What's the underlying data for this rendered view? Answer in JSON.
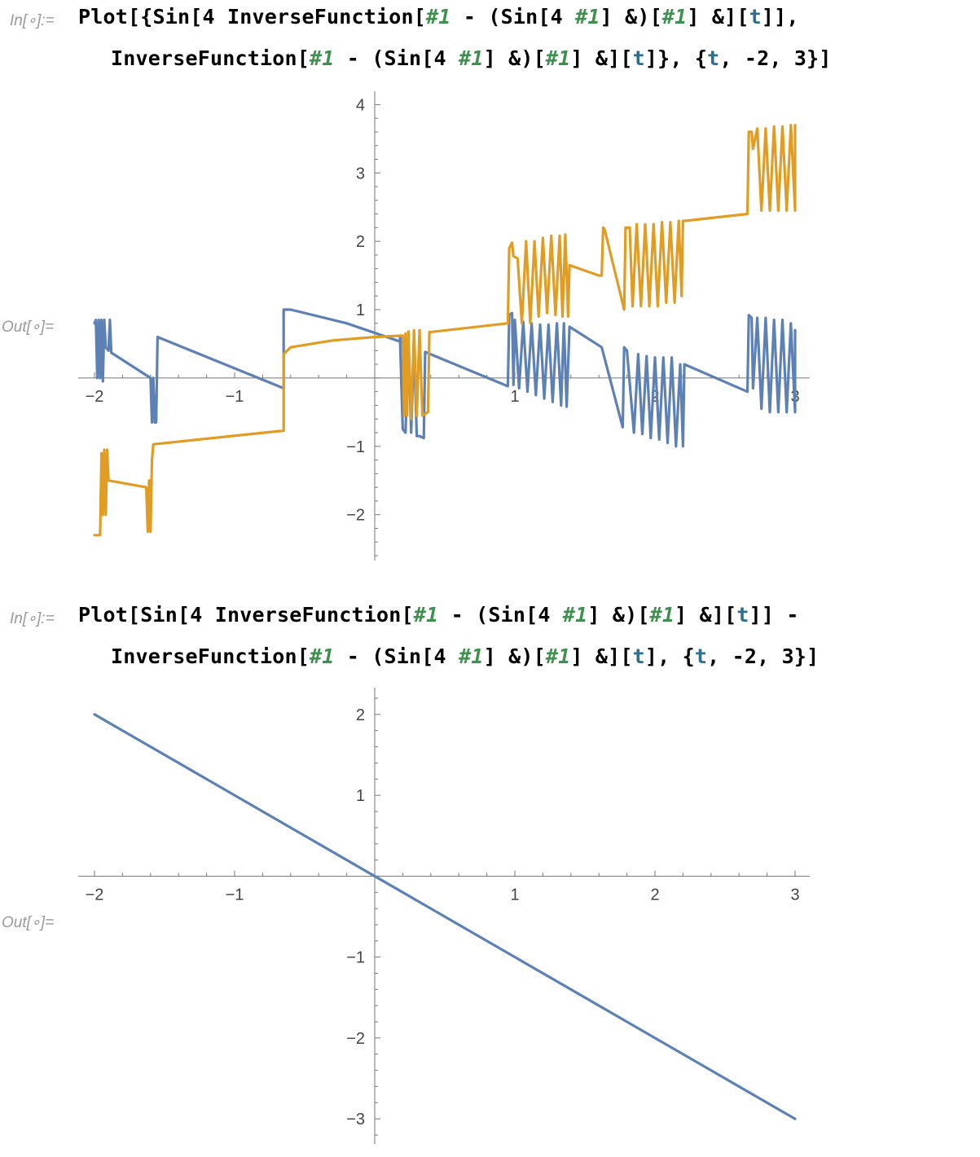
{
  "cells": [
    {
      "in_label": "In[∘]:=",
      "out_label": "Out[∘]=",
      "code_lines": [
        [
          [
            "t",
            "Plot[{Sin[4 InverseFunction["
          ],
          [
            "s",
            "#1"
          ],
          [
            "t",
            " - (Sin[4 "
          ],
          [
            "s",
            "#1"
          ],
          [
            "t",
            "] &)["
          ],
          [
            "s",
            "#1"
          ],
          [
            "t",
            "] &]["
          ],
          [
            "v",
            "t"
          ],
          [
            "t",
            "]],"
          ]
        ],
        [
          [
            "t",
            "InverseFunction["
          ],
          [
            "s",
            "#1"
          ],
          [
            "t",
            " - (Sin[4 "
          ],
          [
            "s",
            "#1"
          ],
          [
            "t",
            "] &)["
          ],
          [
            "s",
            "#1"
          ],
          [
            "t",
            "] &]["
          ],
          [
            "v",
            "t"
          ],
          [
            "t",
            "]}, {"
          ],
          [
            "v",
            "t"
          ],
          [
            "t",
            ", -2, 3}]"
          ]
        ]
      ]
    },
    {
      "in_label": "In[∘]:=",
      "out_label": "Out[∘]=",
      "code_lines": [
        [
          [
            "t",
            "Plot[Sin[4 InverseFunction["
          ],
          [
            "s",
            "#1"
          ],
          [
            "t",
            " - (Sin[4 "
          ],
          [
            "s",
            "#1"
          ],
          [
            "t",
            "] &)["
          ],
          [
            "s",
            "#1"
          ],
          [
            "t",
            "] &]["
          ],
          [
            "v",
            "t"
          ],
          [
            "t",
            "]] -"
          ]
        ],
        [
          [
            "t",
            "InverseFunction["
          ],
          [
            "s",
            "#1"
          ],
          [
            "t",
            " - (Sin[4 "
          ],
          [
            "s",
            "#1"
          ],
          [
            "t",
            "] &)["
          ],
          [
            "s",
            "#1"
          ],
          [
            "t",
            "] &]["
          ],
          [
            "v",
            "t"
          ],
          [
            "t",
            "], {"
          ],
          [
            "v",
            "t"
          ],
          [
            "t",
            ", -2, 3}]"
          ]
        ]
      ]
    }
  ],
  "chart_data": [
    {
      "type": "line",
      "title": "",
      "xlabel": "",
      "ylabel": "",
      "xlim": [
        -2,
        3
      ],
      "ylim": [
        -2.6,
        4.1
      ],
      "xticks": [
        -2,
        -1,
        1,
        2,
        3
      ],
      "xtick_labels": [
        "−2",
        "−1",
        "1",
        "2",
        "3"
      ],
      "yticks": [
        -2,
        -1,
        1,
        2,
        3,
        4
      ],
      "ytick_labels": [
        "−2",
        "−1",
        "1",
        "2",
        "3",
        "4"
      ],
      "colors": [
        "#5e81b5",
        "#e19c24"
      ],
      "series": [
        {
          "points": [
            [
              -2.0,
              0.8
            ],
            [
              -1.99,
              0.85
            ],
            [
              -1.98,
              0.0
            ],
            [
              -1.97,
              0.85
            ],
            [
              -1.96,
              0.0
            ],
            [
              -1.95,
              0.85
            ],
            [
              -1.94,
              -0.05
            ],
            [
              -1.93,
              0.85
            ],
            [
              -1.92,
              0.45
            ],
            [
              -1.9,
              0.4
            ],
            [
              -1.89,
              0.85
            ],
            [
              -1.88,
              0.37
            ],
            [
              -1.6,
              0.0
            ],
            [
              -1.59,
              -0.65
            ],
            [
              -1.58,
              0.0
            ],
            [
              -1.57,
              -0.65
            ],
            [
              -1.56,
              -0.65
            ],
            [
              -1.55,
              0.6
            ],
            [
              -0.65,
              -0.15
            ],
            [
              -0.65,
              1.0
            ],
            [
              -0.6,
              1.0
            ],
            [
              -0.2,
              0.8
            ],
            [
              0.2,
              0.52
            ],
            [
              0.18,
              0.6
            ],
            [
              0.2,
              -0.75
            ],
            [
              0.22,
              -0.8
            ],
            [
              0.24,
              0.55
            ],
            [
              0.26,
              -0.8
            ],
            [
              0.28,
              0.5
            ],
            [
              0.3,
              -0.85
            ],
            [
              0.32,
              -0.85
            ],
            [
              0.35,
              -0.88
            ],
            [
              0.36,
              0.38
            ],
            [
              0.95,
              -0.12
            ],
            [
              0.96,
              0.92
            ],
            [
              0.98,
              0.95
            ],
            [
              0.99,
              -0.1
            ],
            [
              1.0,
              0.85
            ],
            [
              1.03,
              -0.15
            ],
            [
              1.06,
              0.82
            ],
            [
              1.09,
              -0.2
            ],
            [
              1.12,
              0.8
            ],
            [
              1.15,
              -0.25
            ],
            [
              1.18,
              0.78
            ],
            [
              1.21,
              -0.3
            ],
            [
              1.24,
              0.78
            ],
            [
              1.27,
              -0.35
            ],
            [
              1.3,
              0.8
            ],
            [
              1.33,
              -0.4
            ],
            [
              1.35,
              0.8
            ],
            [
              1.37,
              -0.42
            ],
            [
              1.39,
              0.75
            ],
            [
              1.62,
              0.45
            ],
            [
              1.77,
              -0.72
            ],
            [
              1.78,
              0.45
            ],
            [
              1.8,
              0.4
            ],
            [
              1.85,
              -0.8
            ],
            [
              1.88,
              0.35
            ],
            [
              1.91,
              -0.82
            ],
            [
              1.94,
              0.32
            ],
            [
              1.97,
              -0.88
            ],
            [
              2.0,
              0.3
            ],
            [
              2.03,
              -0.9
            ],
            [
              2.06,
              0.3
            ],
            [
              2.09,
              -0.95
            ],
            [
              2.12,
              0.3
            ],
            [
              2.15,
              -1.0
            ],
            [
              2.18,
              0.2
            ],
            [
              2.2,
              -1.0
            ],
            [
              2.21,
              0.2
            ],
            [
              2.66,
              -0.2
            ],
            [
              2.67,
              0.92
            ],
            [
              2.69,
              0.88
            ],
            [
              2.7,
              -0.15
            ],
            [
              2.73,
              0.88
            ],
            [
              2.76,
              -0.45
            ],
            [
              2.79,
              0.88
            ],
            [
              2.82,
              -0.5
            ],
            [
              2.85,
              0.85
            ],
            [
              2.88,
              -0.5
            ],
            [
              2.91,
              0.85
            ],
            [
              2.94,
              -0.5
            ],
            [
              2.97,
              0.8
            ],
            [
              3.0,
              -0.5
            ],
            [
              3.0,
              0.7
            ]
          ]
        },
        {
          "points": [
            [
              -2.0,
              -2.3
            ],
            [
              -1.96,
              -2.3
            ],
            [
              -1.95,
              -1.1
            ],
            [
              -1.94,
              -2.0
            ],
            [
              -1.93,
              -1.05
            ],
            [
              -1.92,
              -2.0
            ],
            [
              -1.91,
              -1.05
            ],
            [
              -1.9,
              -1.5
            ],
            [
              -1.63,
              -1.6
            ],
            [
              -1.62,
              -2.25
            ],
            [
              -1.61,
              -1.5
            ],
            [
              -1.6,
              -2.25
            ],
            [
              -1.59,
              -1.2
            ],
            [
              -1.58,
              -0.97
            ],
            [
              -0.65,
              -0.77
            ],
            [
              -0.65,
              0.35
            ],
            [
              -0.6,
              0.45
            ],
            [
              -0.3,
              0.55
            ],
            [
              0.0,
              0.6
            ],
            [
              0.2,
              0.62
            ],
            [
              0.21,
              -0.55
            ],
            [
              0.22,
              0.65
            ],
            [
              0.23,
              -0.55
            ],
            [
              0.24,
              0.68
            ],
            [
              0.26,
              -0.6
            ],
            [
              0.28,
              0.7
            ],
            [
              0.3,
              -0.55
            ],
            [
              0.32,
              0.7
            ],
            [
              0.34,
              -0.55
            ],
            [
              0.38,
              -0.5
            ],
            [
              0.39,
              0.67
            ],
            [
              0.95,
              0.8
            ],
            [
              0.96,
              1.9
            ],
            [
              0.98,
              1.98
            ],
            [
              0.99,
              1.78
            ],
            [
              1.02,
              1.75
            ],
            [
              1.05,
              0.8
            ],
            [
              1.08,
              2.0
            ],
            [
              1.11,
              0.8
            ],
            [
              1.14,
              2.0
            ],
            [
              1.17,
              0.9
            ],
            [
              1.2,
              2.05
            ],
            [
              1.23,
              0.95
            ],
            [
              1.26,
              2.08
            ],
            [
              1.29,
              0.92
            ],
            [
              1.32,
              2.08
            ],
            [
              1.34,
              0.9
            ],
            [
              1.36,
              2.1
            ],
            [
              1.38,
              0.9
            ],
            [
              1.39,
              1.65
            ],
            [
              1.6,
              1.5
            ],
            [
              1.62,
              1.5
            ],
            [
              1.63,
              2.2
            ],
            [
              1.64,
              2.18
            ],
            [
              1.78,
              1.0
            ],
            [
              1.79,
              2.2
            ],
            [
              1.82,
              2.2
            ],
            [
              1.84,
              1.05
            ],
            [
              1.87,
              2.25
            ],
            [
              1.9,
              1.05
            ],
            [
              1.93,
              2.25
            ],
            [
              1.96,
              1.05
            ],
            [
              1.99,
              2.25
            ],
            [
              2.02,
              1.05
            ],
            [
              2.05,
              2.28
            ],
            [
              2.08,
              1.1
            ],
            [
              2.11,
              2.28
            ],
            [
              2.14,
              1.1
            ],
            [
              2.17,
              2.3
            ],
            [
              2.19,
              1.2
            ],
            [
              2.2,
              2.3
            ],
            [
              2.22,
              2.3
            ],
            [
              2.66,
              2.4
            ],
            [
              2.67,
              3.6
            ],
            [
              2.69,
              3.6
            ],
            [
              2.7,
              3.35
            ],
            [
              2.73,
              3.65
            ],
            [
              2.76,
              2.45
            ],
            [
              2.79,
              3.65
            ],
            [
              2.82,
              2.45
            ],
            [
              2.85,
              3.68
            ],
            [
              2.88,
              2.45
            ],
            [
              2.91,
              3.68
            ],
            [
              2.94,
              2.45
            ],
            [
              2.97,
              3.7
            ],
            [
              3.0,
              2.45
            ],
            [
              3.0,
              3.7
            ]
          ]
        }
      ]
    },
    {
      "type": "line",
      "title": "",
      "xlabel": "",
      "ylabel": "",
      "xlim": [
        -2,
        3
      ],
      "ylim": [
        -3.25,
        2.25
      ],
      "xticks": [
        -2,
        -1,
        1,
        2,
        3
      ],
      "xtick_labels": [
        "−2",
        "−1",
        "1",
        "2",
        "3"
      ],
      "yticks": [
        -3,
        -2,
        -1,
        1,
        2
      ],
      "ytick_labels": [
        "−3",
        "−2",
        "−1",
        "1",
        "2"
      ],
      "colors": [
        "#5e81b5"
      ],
      "series": [
        {
          "points": [
            [
              -2,
              2
            ],
            [
              3,
              -3
            ]
          ]
        }
      ]
    }
  ]
}
